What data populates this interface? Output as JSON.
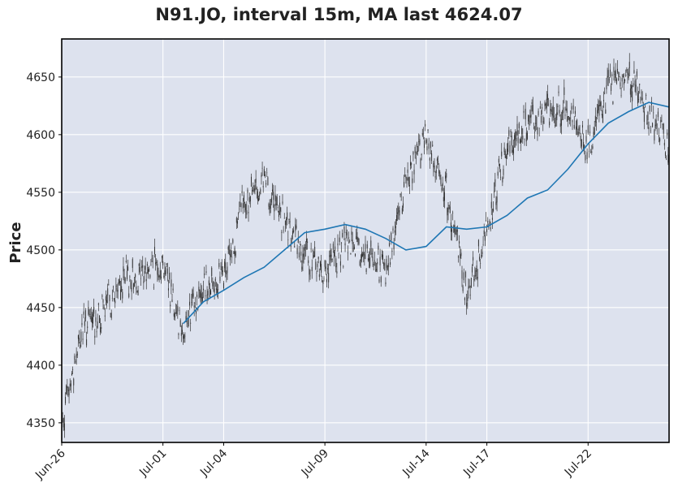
{
  "chart_data": {
    "type": "candlestick",
    "title": "N91.JO, interval 15m, MA last 4624.07",
    "ylabel": "Price",
    "xlabel": "",
    "ylim": [
      4333,
      4683
    ],
    "yticks": [
      4350,
      4400,
      4450,
      4500,
      4550,
      4600,
      4650
    ],
    "xlim": [
      "2024-06-26",
      "2024-07-26"
    ],
    "xticks": [
      {
        "label": "Jun-26",
        "date": "2024-06-26"
      },
      {
        "label": "Jul-01",
        "date": "2024-07-01"
      },
      {
        "label": "Jul-04",
        "date": "2024-07-04"
      },
      {
        "label": "Jul-09",
        "date": "2024-07-09"
      },
      {
        "label": "Jul-14",
        "date": "2024-07-14"
      },
      {
        "label": "Jul-17",
        "date": "2024-07-17"
      },
      {
        "label": "Jul-22",
        "date": "2024-07-22"
      }
    ],
    "grid": true,
    "series": [
      {
        "name": "",
        "kind": "candles",
        "color": "#333333",
        "x": [
          "2024-06-26",
          "2024-06-27",
          "2024-06-28",
          "2024-06-29",
          "2024-06-30",
          "2024-07-01",
          "2024-07-02",
          "2024-07-03",
          "2024-07-04",
          "2024-07-05",
          "2024-07-06",
          "2024-07-07",
          "2024-07-08",
          "2024-07-09",
          "2024-07-10",
          "2024-07-11",
          "2024-07-12",
          "2024-07-13",
          "2024-07-14",
          "2024-07-15",
          "2024-07-16",
          "2024-07-17",
          "2024-07-18",
          "2024-07-19",
          "2024-07-20",
          "2024-07-21",
          "2024-07-22",
          "2024-07-23",
          "2024-07-24",
          "2024-07-25",
          "2024-07-26"
        ],
        "close": [
          4350,
          4430,
          4445,
          4470,
          4480,
          4490,
          4430,
          4470,
          4475,
          4540,
          4560,
          4520,
          4495,
          4480,
          4505,
          4495,
          4480,
          4560,
          4600,
          4550,
          4460,
          4520,
          4590,
          4610,
          4620,
          4625,
          4590,
          4640,
          4650,
          4620,
          4590
        ]
      },
      {
        "name": "",
        "kind": "line",
        "color": "#1f77b4",
        "x": [
          "2024-07-02",
          "2024-07-03",
          "2024-07-04",
          "2024-07-05",
          "2024-07-06",
          "2024-07-07",
          "2024-07-08",
          "2024-07-09",
          "2024-07-10",
          "2024-07-11",
          "2024-07-12",
          "2024-07-13",
          "2024-07-14",
          "2024-07-15",
          "2024-07-16",
          "2024-07-17",
          "2024-07-18",
          "2024-07-19",
          "2024-07-20",
          "2024-07-21",
          "2024-07-22",
          "2024-07-23",
          "2024-07-24",
          "2024-07-25",
          "2024-07-26"
        ],
        "values": [
          4436,
          4455,
          4465,
          4476,
          4485,
          4500,
          4515,
          4518,
          4522,
          4518,
          4510,
          4500,
          4503,
          4520,
          4518,
          4520,
          4530,
          4545,
          4552,
          4570,
          4592,
          4610,
          4620,
          4628,
          4624
        ]
      }
    ]
  }
}
